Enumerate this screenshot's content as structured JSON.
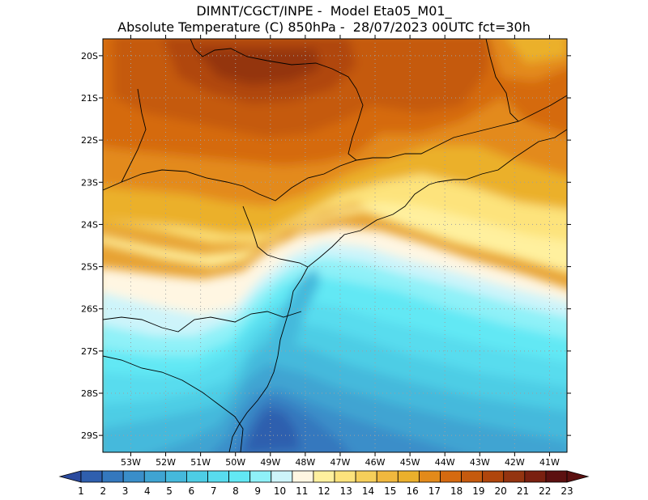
{
  "header": {
    "title_line1": "DIMNT/CGCT/INPE -  Model Eta05_M01_",
    "title_line2": "Absolute Temperature (C) 850hPa -  28/07/2023 00UTC fct=30h"
  },
  "map": {
    "lat_labels": [
      "20S",
      "21S",
      "22S",
      "23S",
      "24S",
      "25S",
      "26S",
      "27S",
      "28S",
      "29S"
    ],
    "lon_labels": [
      "53W",
      "52W",
      "51W",
      "50W",
      "49W",
      "48W",
      "47W",
      "46W",
      "45W",
      "44W",
      "43W",
      "42W",
      "41W"
    ],
    "lat_range": [
      -29.4,
      -19.6
    ],
    "lon_range": [
      -53.8,
      -40.5
    ]
  },
  "colorbar": {
    "labels": [
      "1",
      "2",
      "3",
      "4",
      "5",
      "6",
      "7",
      "8",
      "9",
      "10",
      "11",
      "12",
      "13",
      "14",
      "15",
      "16",
      "17",
      "18",
      "19",
      "20",
      "21",
      "22",
      "23"
    ],
    "colors": [
      "#2a4a9e",
      "#2f5fae",
      "#3478be",
      "#3a8ec9",
      "#3fa4d2",
      "#45b9dc",
      "#4dcde5",
      "#58dcee",
      "#62e8f4",
      "#8ff1f8",
      "#cdf4fa",
      "#fff6e2",
      "#fff09e",
      "#fde37c",
      "#f6cf5a",
      "#f0b83e",
      "#ebb02c",
      "#e38a1a",
      "#d56a10",
      "#c55a0e",
      "#b0460c",
      "#943410",
      "#7a2010",
      "#5c1010"
    ]
  }
}
